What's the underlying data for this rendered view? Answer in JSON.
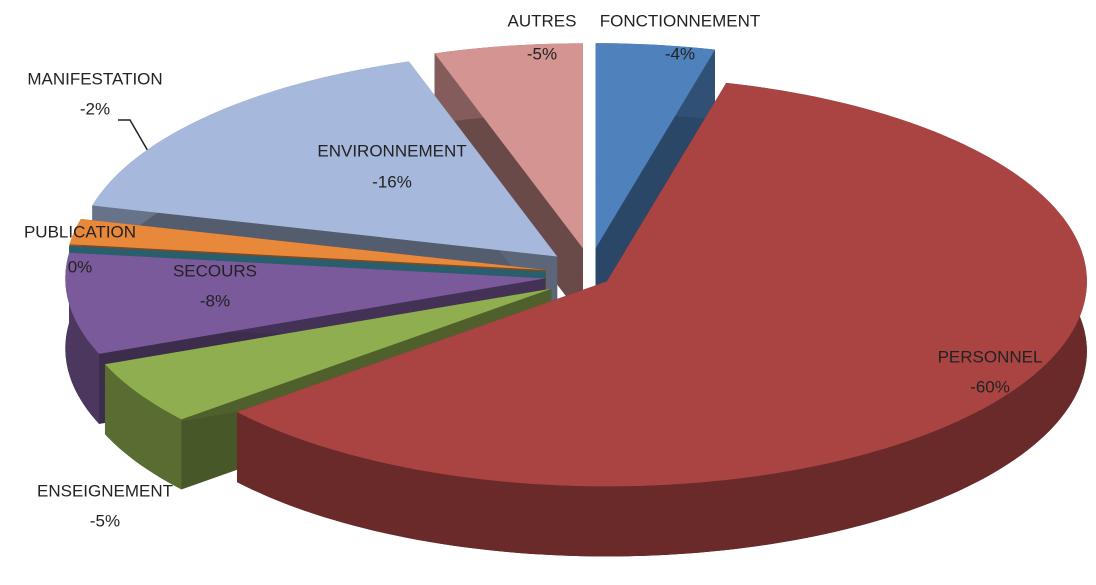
{
  "chart_data": {
    "type": "pie",
    "categories": [
      "FONCTIONNEMENT",
      "PERSONNEL",
      "ENSEIGNEMENT",
      "SECOURS",
      "PUBLICATION",
      "MANIFESTATION",
      "ENVIRONNEMENT",
      "AUTRES"
    ],
    "values": [
      -4,
      -60,
      -5,
      -8,
      0,
      -2,
      -16,
      -5
    ],
    "value_labels": [
      "-4%",
      "-60%",
      "-5%",
      "-8%",
      "0%",
      "-2%",
      "-16%",
      "-5%"
    ],
    "colors": [
      "#4f81bd",
      "#a94442",
      "#8fae50",
      "#7a5a9a",
      "#4bacc6",
      "#e8883a",
      "#a6b9dc",
      "#d39492"
    ]
  }
}
